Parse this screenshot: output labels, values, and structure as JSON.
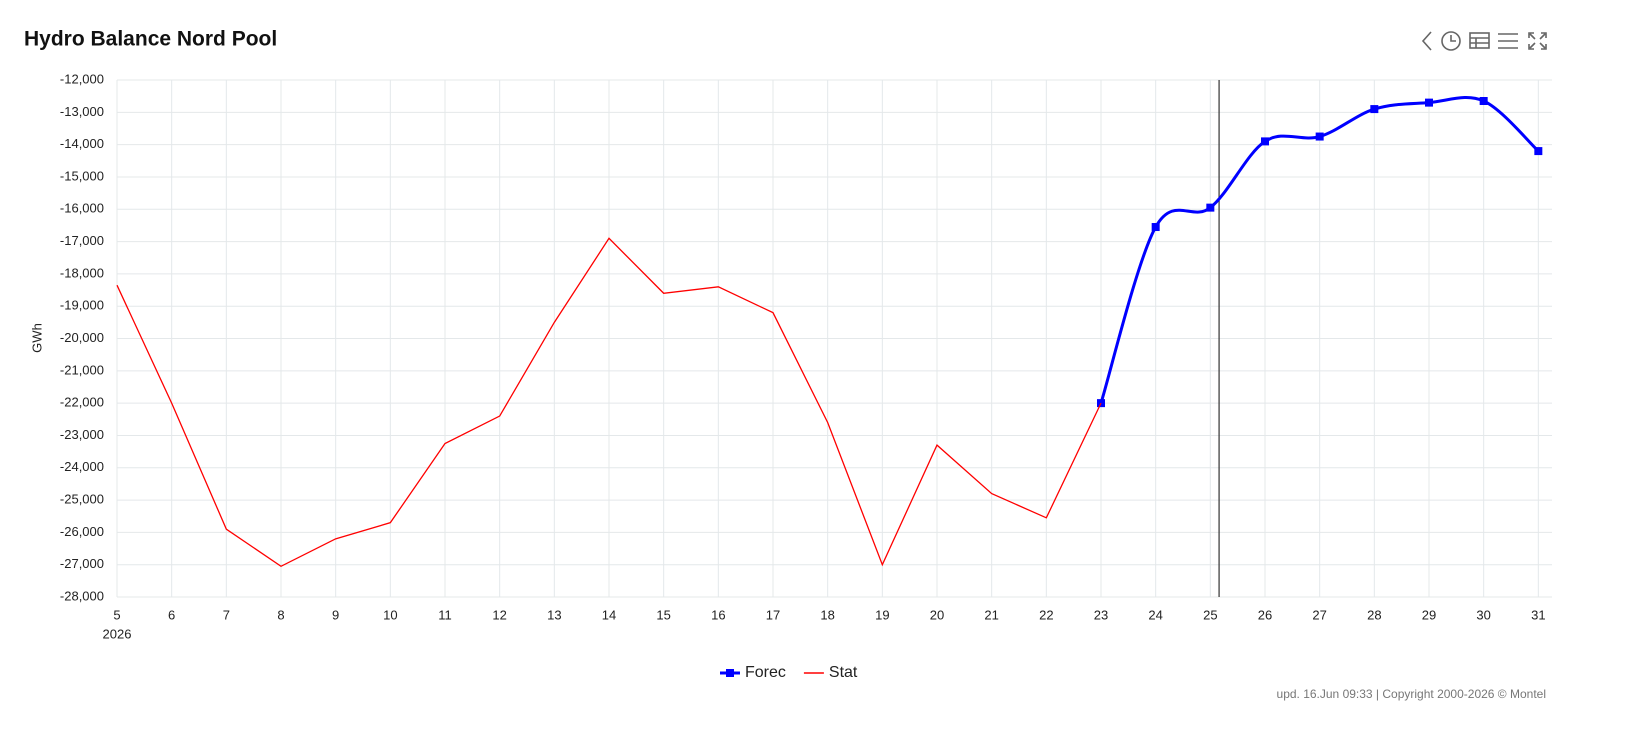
{
  "chart_data": {
    "type": "line",
    "title": "Hydro Balance Nord Pool",
    "y_label": "GWh",
    "x_year_label": "2026",
    "x": [
      5,
      6,
      7,
      8,
      9,
      10,
      11,
      12,
      13,
      14,
      15,
      16,
      17,
      18,
      19,
      20,
      21,
      22,
      23,
      24,
      25,
      26,
      27,
      28,
      29,
      30,
      31
    ],
    "series": [
      {
        "name": "Forec",
        "color": "#0000ff",
        "smooth": true,
        "markers": true,
        "values": [
          null,
          null,
          null,
          null,
          null,
          null,
          null,
          null,
          null,
          null,
          null,
          null,
          null,
          null,
          null,
          null,
          null,
          null,
          -22000,
          -16550,
          -15950,
          -13900,
          -13750,
          -12900,
          -12700,
          -12650,
          -14200
        ]
      },
      {
        "name": "Stat",
        "color": "#ff0000",
        "smooth": false,
        "markers": false,
        "values": [
          -18350,
          -22000,
          -25900,
          -27050,
          -26200,
          -25700,
          -23250,
          -22400,
          -19500,
          -16900,
          -18600,
          -18400,
          -19200,
          -22600,
          -27000,
          -23300,
          -24800,
          -25550,
          -22000,
          null,
          null,
          null,
          null,
          null,
          null,
          null,
          null
        ]
      }
    ],
    "xlim": [
      5,
      31.25
    ],
    "xticks": [
      5,
      6,
      7,
      8,
      9,
      10,
      11,
      12,
      13,
      14,
      15,
      16,
      17,
      18,
      19,
      20,
      21,
      22,
      23,
      24,
      25,
      26,
      27,
      28,
      29,
      30,
      31
    ],
    "ylim": [
      -28000,
      -12000
    ],
    "yticks": [
      {
        "value": -28000,
        "label": "-28,000"
      },
      {
        "value": -27000,
        "label": "-27,000"
      },
      {
        "value": -26000,
        "label": "-26,000"
      },
      {
        "value": -25000,
        "label": "-25,000"
      },
      {
        "value": -24000,
        "label": "-24,000"
      },
      {
        "value": -23000,
        "label": "-23,000"
      },
      {
        "value": -22000,
        "label": "-22,000"
      },
      {
        "value": -21000,
        "label": "-21,000"
      },
      {
        "value": -20000,
        "label": "-20,000"
      },
      {
        "value": -19000,
        "label": "-19,000"
      },
      {
        "value": -18000,
        "label": "-18,000"
      },
      {
        "value": -17000,
        "label": "-17,000"
      },
      {
        "value": -16000,
        "label": "-16,000"
      },
      {
        "value": -15000,
        "label": "-15,000"
      },
      {
        "value": -14000,
        "label": "-14,000"
      },
      {
        "value": -13000,
        "label": "-13,000"
      },
      {
        "value": -12000,
        "label": "-12,000"
      }
    ],
    "grid": true,
    "marker_x": 25.16,
    "footer": "upd. 16.Jun 09:33 | Copyright 2000-2026 © Montel"
  }
}
